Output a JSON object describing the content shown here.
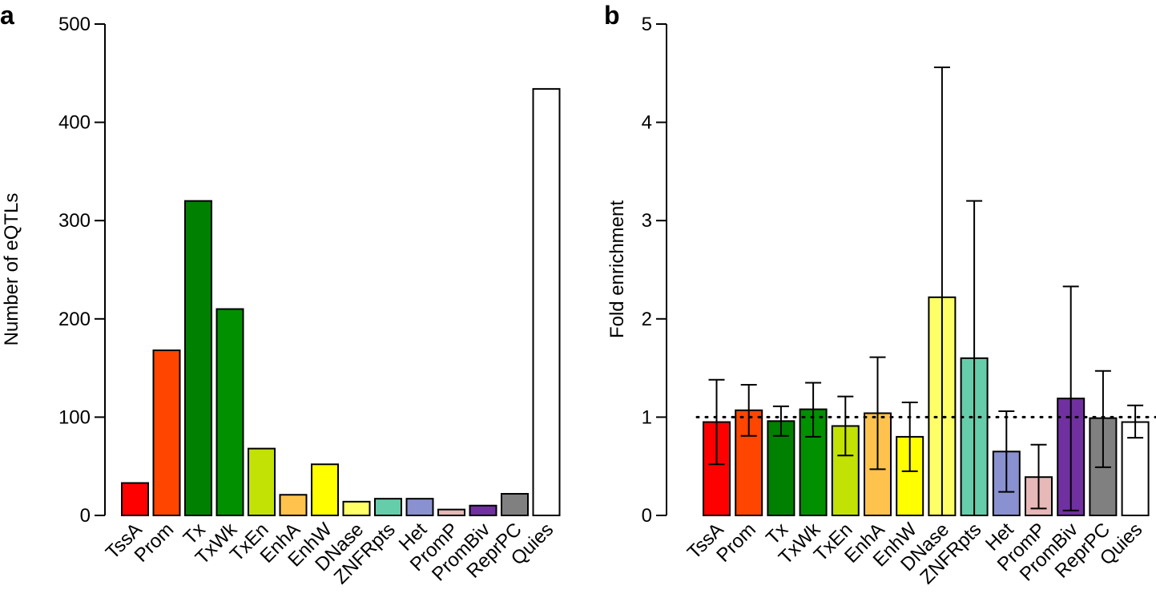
{
  "colors": {
    "TssA": "#ff0000",
    "Prom": "#ff4500",
    "Tx": "#008000",
    "TxWk": "#009000",
    "TxEn": "#c2e105",
    "EnhA": "#ffc34d",
    "EnhW": "#ffff00",
    "DNase": "#ffff66",
    "ZNFRpts": "#66cdaa",
    "Het": "#8a91d0",
    "PromP": "#e6b8b7",
    "PromBiv": "#7030a0",
    "ReprPC": "#808080",
    "Quies": "#ffffff"
  },
  "chart_data": [
    {
      "panel": "a",
      "type": "bar",
      "title": "",
      "xlabel": "",
      "ylabel": "Number of eQTLs",
      "ylim": [
        0,
        500
      ],
      "yticks": [
        0,
        100,
        200,
        300,
        400,
        500
      ],
      "categories": [
        "TssA",
        "Prom",
        "Tx",
        "TxWk",
        "TxEn",
        "EnhA",
        "EnhW",
        "DNase",
        "ZNFRpts",
        "Het",
        "PromP",
        "PromBiv",
        "ReprPC",
        "Quies"
      ],
      "values": [
        33,
        168,
        320,
        210,
        68,
        21,
        52,
        14,
        17,
        17,
        6,
        10,
        22,
        434
      ]
    },
    {
      "panel": "b",
      "type": "bar",
      "title": "",
      "xlabel": "",
      "ylabel": "Fold enrichment",
      "ylim": [
        0,
        5
      ],
      "yticks": [
        0,
        1,
        2,
        3,
        4,
        5
      ],
      "reference_line": 1,
      "categories": [
        "TssA",
        "Prom",
        "Tx",
        "TxWk",
        "TxEn",
        "EnhA",
        "EnhW",
        "DNase",
        "ZNFRpts",
        "Het",
        "PromP",
        "PromBiv",
        "ReprPC",
        "Quies"
      ],
      "values": [
        0.95,
        1.07,
        0.96,
        1.08,
        0.91,
        1.04,
        0.8,
        2.22,
        1.6,
        0.65,
        0.39,
        1.19,
        0.99,
        0.95
      ],
      "error_low": [
        0.52,
        0.81,
        0.81,
        0.8,
        0.61,
        0.47,
        0.45,
        0.0,
        0.0,
        0.24,
        0.07,
        0.05,
        0.49,
        0.79
      ],
      "error_high": [
        1.38,
        1.33,
        1.11,
        1.35,
        1.21,
        1.61,
        1.15,
        4.56,
        3.2,
        1.06,
        0.72,
        2.33,
        1.47,
        1.12
      ]
    }
  ]
}
